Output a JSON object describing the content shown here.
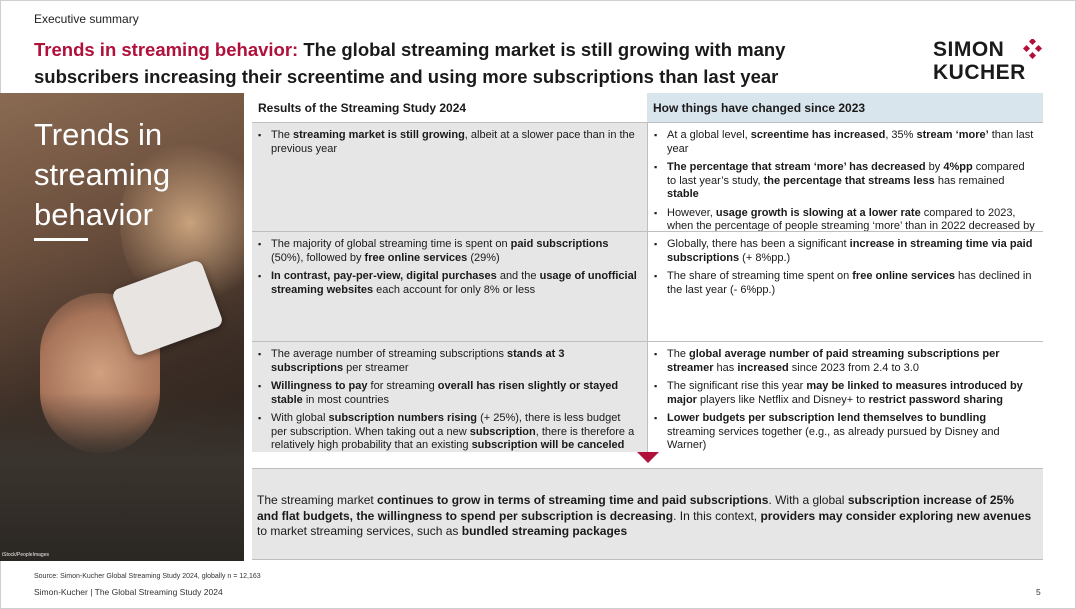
{
  "section_label": "Executive summary",
  "title": {
    "accent": "Trends in streaming behavior:",
    "main": " The global streaming market is still growing with many subscribers increasing their screentime and using more subscriptions than last year"
  },
  "logo": {
    "line1": "SIMON",
    "line2": "KUCHER",
    "accent_color": "#b0103a"
  },
  "photo": {
    "title": "Trends in streaming behavior",
    "credit": "iStock/PeopleImages"
  },
  "table": {
    "left_header": "Results of the Streaming Study 2024",
    "right_header": "How things have changed since 2023",
    "rows": [
      {
        "left": [
          [
            {
              "t": "The "
            },
            {
              "t": "streaming market",
              "b": true
            },
            {
              "t": " is still growing",
              "b": true
            },
            {
              "t": ", albeit at a slower pace than in the previous year"
            }
          ]
        ],
        "right": [
          [
            {
              "t": "At a global level, "
            },
            {
              "t": "screentime has increased",
              "b": true
            },
            {
              "t": ", 35% "
            },
            {
              "t": "stream ‘more’",
              "b": true
            },
            {
              "t": " than last year"
            }
          ],
          [
            {
              "t": "The percentage that stream ‘more’ has decreased",
              "b": true
            },
            {
              "t": " by "
            },
            {
              "t": "4%pp",
              "b": true
            },
            {
              "t": " compared to last year’s study, "
            },
            {
              "t": "the percentage that streams less",
              "b": true
            },
            {
              "t": " has remained "
            },
            {
              "t": "stable",
              "b": true
            }
          ],
          [
            {
              "t": "However, "
            },
            {
              "t": "usage growth is slowing at a lower rate",
              "b": true
            },
            {
              "t": " compared to 2023, when the percentage of people streaming ‘more’ than in 2022 decreased by 11%pp"
            }
          ]
        ]
      },
      {
        "left": [
          [
            {
              "t": "The majority of global streaming time is spent on "
            },
            {
              "t": "paid subscriptions",
              "b": true
            },
            {
              "t": " (50%), followed by "
            },
            {
              "t": "free online services",
              "b": true
            },
            {
              "t": " (29%)"
            }
          ],
          [
            {
              "t": "In contrast, pay-per-view, digital purchases",
              "b": true
            },
            {
              "t": " and the "
            },
            {
              "t": "usage of unofficial streaming websites",
              "b": true
            },
            {
              "t": " each account for only 8% or less"
            }
          ]
        ],
        "right": [
          [
            {
              "t": "Globally, there has been a significant "
            },
            {
              "t": "increase in streaming time via paid subscriptions",
              "b": true
            },
            {
              "t": " (+ 8%pp.)"
            }
          ],
          [
            {
              "t": "The share of streaming time spent on "
            },
            {
              "t": "free online services",
              "b": true
            },
            {
              "t": " has declined in the last year (- 6%pp.)"
            }
          ]
        ]
      },
      {
        "left": [
          [
            {
              "t": "The average number of streaming subscriptions "
            },
            {
              "t": "stands at 3 subscriptions",
              "b": true
            },
            {
              "t": " per streamer"
            }
          ],
          [
            {
              "t": "Willingness to pay",
              "b": true
            },
            {
              "t": " for streaming "
            },
            {
              "t": "overall has risen slightly or stayed stable",
              "b": true
            },
            {
              "t": " in most countries"
            }
          ],
          [
            {
              "t": "With global "
            },
            {
              "t": "subscription numbers rising",
              "b": true
            },
            {
              "t": " (+ 25%), there is less budget per subscription. When taking out a new "
            },
            {
              "t": "subscription",
              "b": true
            },
            {
              "t": ", there is therefore a relatively high probability that an existing "
            },
            {
              "t": "subscription will be canceled",
              "b": true
            }
          ]
        ],
        "right": [
          [
            {
              "t": "The "
            },
            {
              "t": "global average number of paid streaming subscriptions per streamer",
              "b": true
            },
            {
              "t": " has "
            },
            {
              "t": "increased",
              "b": true
            },
            {
              "t": " since 2023 from 2.4 to 3.0"
            }
          ],
          [
            {
              "t": "The significant rise this year "
            },
            {
              "t": "may be linked to measures introduced by major",
              "b": true
            },
            {
              "t": " players like Netflix and Disney+ to "
            },
            {
              "t": "restrict password sharing",
              "b": true
            }
          ],
          [
            {
              "t": "Lower budgets per subscription lend themselves to bundling",
              "b": true
            },
            {
              "t": " streaming services together (e.g., as already pursued by Disney and Warner)"
            }
          ]
        ]
      }
    ]
  },
  "summary": [
    {
      "t": "The streaming market "
    },
    {
      "t": "continues to grow in terms of streaming time and paid subscriptions",
      "b": true
    },
    {
      "t": ". With a global "
    },
    {
      "t": "subscription increase of 25% and flat budgets, the willingness to spend per subscription is decreasing",
      "b": true
    },
    {
      "t": ". In this context, "
    },
    {
      "t": "providers may consider exploring new avenues",
      "b": true
    },
    {
      "t": " to market streaming services, such as "
    },
    {
      "t": "bundled streaming packages",
      "b": true
    }
  ],
  "source": "Source: Simon-Kucher Global Streaming Study 2024, globally n = 12,163",
  "footer": "Simon-Kucher | The Global Streaming Study 2024",
  "page_number": "5",
  "colors": {
    "accent": "#b0103a",
    "header_blue": "#d9e5ec",
    "cell_gray": "#e6e6e6"
  }
}
